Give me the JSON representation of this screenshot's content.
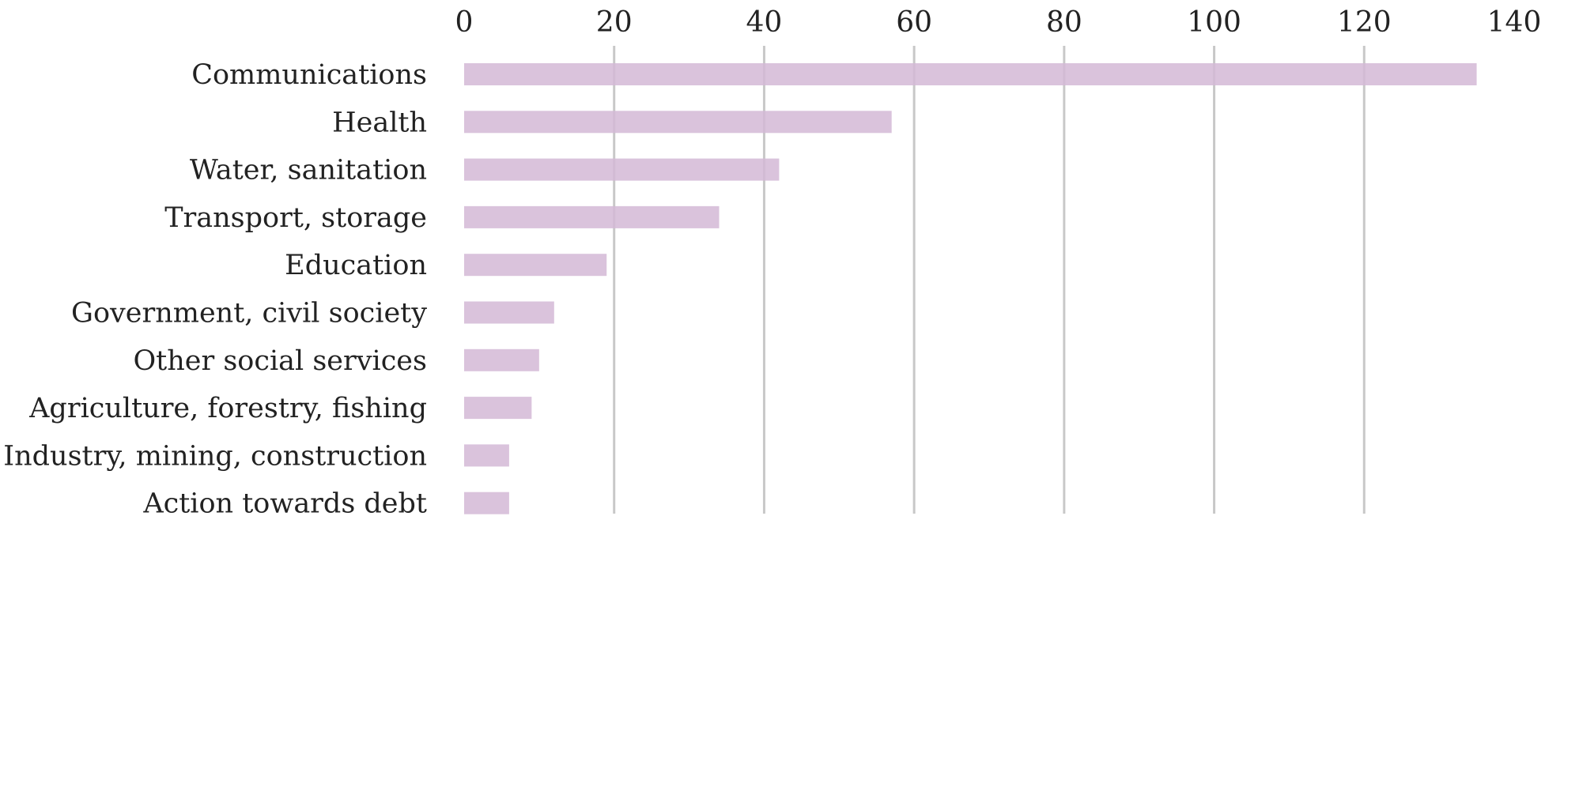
{
  "chart_data": {
    "type": "bar",
    "orientation": "horizontal",
    "title": "",
    "xlabel": "",
    "ylabel": "",
    "xlim": [
      0,
      140
    ],
    "x_ticks": [
      "0",
      "20",
      "40",
      "60",
      "80",
      "100",
      "120",
      "140"
    ],
    "grid": "vertical",
    "legend": "none",
    "bar_color": "#d4b8d6",
    "grid_color": "#c8c8c8",
    "categories": [
      "Communications",
      "Health",
      "Water, sanitation",
      "Transport, storage",
      "Education",
      "Government, civil society",
      "Other social services",
      "Agriculture, forestry, fishing",
      "Industry, mining, construction",
      "Action towards debt"
    ],
    "values": [
      135,
      57,
      42,
      34,
      19,
      12,
      10,
      9,
      6,
      6
    ]
  }
}
